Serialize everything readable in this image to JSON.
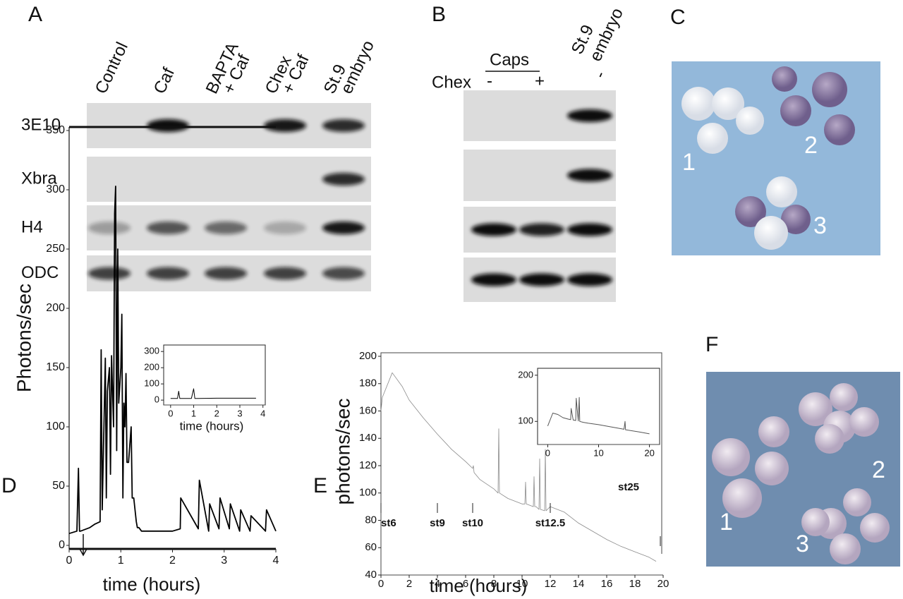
{
  "panels": {
    "A": {
      "label": "A",
      "lanes": [
        [
          "Control"
        ],
        [
          "Caf"
        ],
        [
          "BAPTA",
          "+ Caf"
        ],
        [
          "Chex",
          "+ Caf"
        ],
        [
          "St.9",
          "embryo"
        ]
      ],
      "rows": [
        "3E10",
        "Xbra",
        "H4",
        "ODC"
      ]
    },
    "B": {
      "label": "B",
      "caps": "Caps",
      "chex": "Chex",
      "chex_signs": [
        "-",
        "+"
      ],
      "embryo": [
        "St.9",
        "embryo"
      ],
      "embryo_sign": "-"
    },
    "C": {
      "label": "C",
      "groups": [
        "1",
        "2",
        "3"
      ]
    },
    "F": {
      "label": "F",
      "groups": [
        "1",
        "2",
        "3"
      ]
    }
  },
  "chart_data": [
    {
      "type": "line",
      "panel_label": "D",
      "xlabel": "time (hours)",
      "ylabel": "Photons/sec",
      "xlim": [
        0,
        4
      ],
      "ylim": [
        0,
        350
      ],
      "xticks": [
        0,
        1,
        2,
        3,
        4
      ],
      "yticks": [
        0,
        50,
        100,
        150,
        200,
        250,
        300,
        350
      ],
      "series": [
        {
          "color": "#000000",
          "x": [
            0,
            0.15,
            0.18,
            0.2,
            0.22,
            0.4,
            0.5,
            0.6,
            0.62,
            0.64,
            0.7,
            0.72,
            0.74,
            0.78,
            0.8,
            0.82,
            0.86,
            0.88,
            0.9,
            0.92,
            0.94,
            0.96,
            1.0,
            1.02,
            1.04,
            1.06,
            1.08,
            1.1,
            1.12,
            1.15,
            1.2,
            1.22,
            1.25,
            1.3,
            1.32,
            1.35,
            1.4,
            1.6,
            2.0,
            2.15,
            2.16,
            2.5,
            2.52,
            2.7,
            2.72,
            2.9,
            2.92,
            3.1,
            3.12,
            3.3,
            3.32,
            3.5,
            3.52,
            3.8,
            3.82,
            4.0
          ],
          "values": [
            10,
            12,
            65,
            12,
            12,
            15,
            18,
            20,
            165,
            30,
            158,
            40,
            130,
            150,
            60,
            160,
            100,
            280,
            303,
            80,
            250,
            120,
            150,
            195,
            40,
            120,
            100,
            145,
            70,
            70,
            100,
            40,
            40,
            20,
            15,
            15,
            12,
            12,
            12,
            14,
            40,
            14,
            55,
            12,
            35,
            14,
            40,
            14,
            35,
            12,
            30,
            12,
            25,
            12,
            30,
            12
          ]
        }
      ]
    },
    {
      "type": "line",
      "xlabel": "time (hours)",
      "xlim": [
        -0.3,
        4.1
      ],
      "ylim": [
        -30,
        340
      ],
      "xticks": [
        0,
        1,
        2,
        3,
        4
      ],
      "yticks": [
        0,
        100,
        200,
        300
      ],
      "series": [
        {
          "color": "#000000",
          "x": [
            0,
            0.3,
            0.35,
            0.4,
            0.9,
            1.0,
            1.05,
            1.2,
            2,
            3,
            3.7
          ],
          "values": [
            10,
            10,
            55,
            10,
            10,
            70,
            10,
            10,
            12,
            12,
            12
          ]
        }
      ]
    },
    {
      "type": "line",
      "panel_label": "E",
      "xlabel": "time (hours)",
      "ylabel": "photons/sec",
      "xlim": [
        0,
        20
      ],
      "ylim": [
        40,
        200
      ],
      "xticks": [
        0,
        2,
        4,
        6,
        8,
        10,
        12,
        14,
        16,
        18,
        20
      ],
      "yticks": [
        40,
        60,
        80,
        100,
        120,
        140,
        160,
        180,
        200
      ],
      "annotations": [
        {
          "text": "st6",
          "x": 0
        },
        {
          "text": "st9",
          "x": 4
        },
        {
          "text": "st10",
          "x": 6.5
        },
        {
          "text": "st12.5",
          "x": 12
        },
        {
          "text": "st25",
          "x": 19.8
        }
      ],
      "series": [
        {
          "color": "#8a8a8a",
          "x": [
            0,
            0.1,
            0.8,
            1.5,
            2,
            3,
            4,
            5,
            6,
            6.5,
            6.55,
            6.6,
            7,
            8,
            8.3,
            8.35,
            8.4,
            9,
            10,
            10.2,
            10.25,
            10.3,
            10.8,
            10.85,
            10.9,
            11,
            11.2,
            11.25,
            11.3,
            11.6,
            11.65,
            11.7,
            12,
            13,
            14,
            15,
            16,
            17,
            18,
            19,
            19.5
          ],
          "values": [
            160,
            170,
            188,
            178,
            168,
            155,
            143,
            132,
            123,
            118,
            120,
            115,
            110,
            103,
            100,
            147,
            100,
            96,
            92,
            92,
            108,
            92,
            90,
            112,
            90,
            90,
            88,
            125,
            88,
            87,
            132,
            87,
            90,
            86,
            78,
            72,
            66,
            61,
            57,
            53,
            50
          ]
        }
      ]
    },
    {
      "type": "line",
      "xlim": [
        -2,
        22
      ],
      "ylim": [
        50,
        215
      ],
      "xticks": [
        0,
        10,
        20
      ],
      "yticks": [
        100,
        200
      ],
      "series": [
        {
          "color": "#555555",
          "x": [
            0,
            1,
            2,
            3,
            4,
            4.5,
            4.6,
            5,
            5.5,
            5.6,
            6,
            6.2,
            6.3,
            7,
            8,
            10,
            12,
            15,
            15.2,
            15.3,
            18,
            20
          ],
          "values": [
            90,
            118,
            115,
            108,
            105,
            104,
            128,
            103,
            102,
            150,
            101,
            152,
            100,
            98,
            96,
            93,
            89,
            83,
            100,
            82,
            77,
            73
          ]
        }
      ]
    }
  ]
}
